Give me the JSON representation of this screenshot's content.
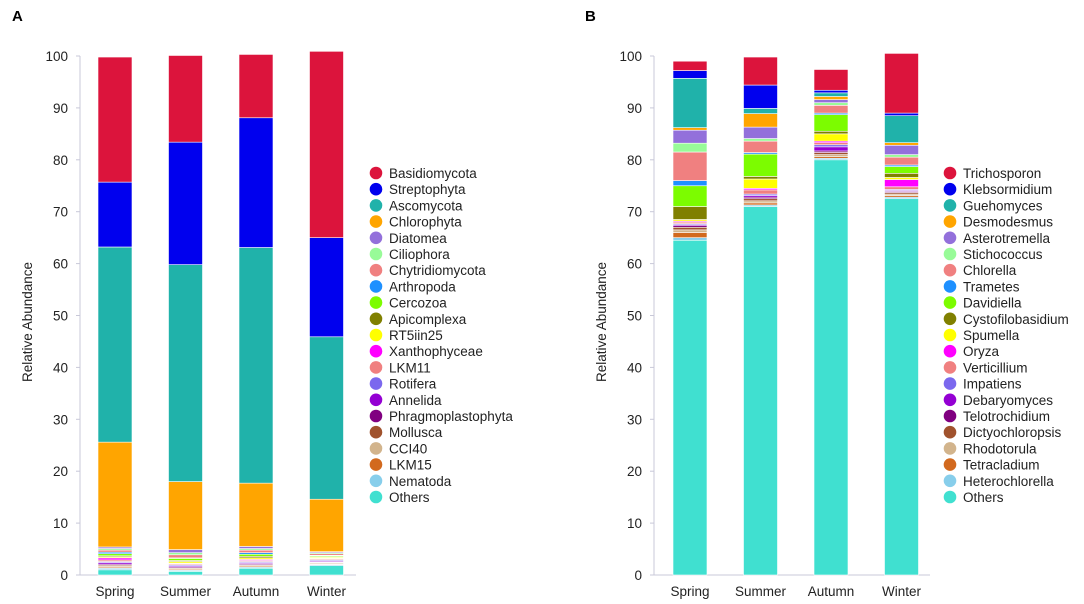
{
  "chart_data": [
    {
      "type": "bar",
      "stacked": true,
      "panel_label": "A",
      "title": "",
      "xlabel": "",
      "ylabel": "Relative Abundance",
      "ylim": [
        0,
        100
      ],
      "yticks": [
        "0",
        "10",
        "20",
        "30",
        "40",
        "50",
        "60",
        "70",
        "80",
        "90",
        "100"
      ],
      "categories": [
        "Spring",
        "Summer",
        "Autumn",
        "Winter"
      ],
      "legend_position": "right",
      "series": [
        {
          "name": "Others",
          "color": "#40e0d0",
          "values": [
            1.0,
            0.7,
            1.3,
            1.8
          ]
        },
        {
          "name": "Nematoda",
          "color": "#87ceeb",
          "values": [
            0.3,
            0.2,
            0.2,
            0.2
          ]
        },
        {
          "name": "LKM15",
          "color": "#d2691e",
          "values": [
            0.2,
            0.2,
            0.2,
            0.1
          ]
        },
        {
          "name": "CCI40",
          "color": "#d2b48c",
          "values": [
            0.2,
            0.2,
            0.2,
            0.2
          ]
        },
        {
          "name": "Mollusca",
          "color": "#a0522d",
          "values": [
            0.2,
            0.1,
            0.1,
            0.1
          ]
        },
        {
          "name": "Phragmoplastophyta",
          "color": "#800080",
          "values": [
            0.2,
            0.2,
            0.2,
            0.1
          ]
        },
        {
          "name": "Annelida",
          "color": "#9400d3",
          "values": [
            0.3,
            0.2,
            0.2,
            0.2
          ]
        },
        {
          "name": "Rotifera",
          "color": "#7b68ee",
          "values": [
            0.2,
            0.2,
            0.2,
            0.2
          ]
        },
        {
          "name": "LKM11",
          "color": "#f08080",
          "values": [
            0.3,
            0.2,
            0.2,
            0.2
          ]
        },
        {
          "name": "Xanthophyceae",
          "color": "#ff00ff",
          "values": [
            0.4,
            0.1,
            0.2,
            0.1
          ]
        },
        {
          "name": "RT5iin25",
          "color": "#ffff00",
          "values": [
            0.2,
            0.3,
            0.3,
            0.2
          ]
        },
        {
          "name": "Apicomplexa",
          "color": "#808000",
          "values": [
            0.2,
            0.2,
            0.3,
            0.1
          ]
        },
        {
          "name": "Cercozoa",
          "color": "#7cfc00",
          "values": [
            0.4,
            0.4,
            0.4,
            0.2
          ]
        },
        {
          "name": "Arthropoda",
          "color": "#1e90ff",
          "values": [
            0.3,
            0.1,
            0.3,
            0.1
          ]
        },
        {
          "name": "Chytridiomycota",
          "color": "#f08080",
          "values": [
            0.4,
            0.6,
            0.5,
            0.3
          ]
        },
        {
          "name": "Ciliophora",
          "color": "#98fb98",
          "values": [
            0.3,
            0.4,
            0.3,
            0.2
          ]
        },
        {
          "name": "Diatomea",
          "color": "#9370db",
          "values": [
            0.3,
            0.6,
            0.4,
            0.2
          ]
        },
        {
          "name": "Chlorophyta",
          "color": "#ffa500",
          "values": [
            20.2,
            13.1,
            12.2,
            10.1
          ]
        },
        {
          "name": "Ascomycota",
          "color": "#20b2aa",
          "values": [
            37.6,
            41.8,
            45.4,
            31.3
          ]
        },
        {
          "name": "Streptophyta",
          "color": "#0000ee",
          "values": [
            12.5,
            23.6,
            25.0,
            19.1
          ]
        },
        {
          "name": "Basidiomycota",
          "color": "#dc143c",
          "values": [
            24.1,
            16.7,
            12.2,
            35.9
          ]
        }
      ]
    },
    {
      "type": "bar",
      "stacked": true,
      "panel_label": "B",
      "title": "",
      "xlabel": "",
      "ylabel": "Relative Abundance",
      "ylim": [
        0,
        100
      ],
      "yticks": [
        "0",
        "10",
        "20",
        "30",
        "40",
        "50",
        "60",
        "70",
        "80",
        "90",
        "100"
      ],
      "categories": [
        "Spring",
        "Summer",
        "Autumn",
        "Winter"
      ],
      "legend_position": "right",
      "series": [
        {
          "name": "Others",
          "color": "#40e0d0",
          "values": [
            64.5,
            71.0,
            80.0,
            72.5
          ]
        },
        {
          "name": "Heterochlorella",
          "color": "#87ceeb",
          "values": [
            0.5,
            0.3,
            0.3,
            0.3
          ]
        },
        {
          "name": "Tetracladium",
          "color": "#d2691e",
          "values": [
            1.0,
            0.4,
            0.3,
            0.3
          ]
        },
        {
          "name": "Rhodotorula",
          "color": "#d2b48c",
          "values": [
            0.5,
            0.4,
            0.4,
            0.3
          ]
        },
        {
          "name": "Dictyochloropsis",
          "color": "#a0522d",
          "values": [
            0.5,
            0.4,
            0.4,
            0.3
          ]
        },
        {
          "name": "Telotrochidium",
          "color": "#800080",
          "values": [
            0.3,
            0.3,
            0.3,
            0.2
          ]
        },
        {
          "name": "Debaryomyces",
          "color": "#9400d3",
          "values": [
            0.2,
            0.3,
            0.8,
            0.2
          ]
        },
        {
          "name": "Impatiens",
          "color": "#7b68ee",
          "values": [
            0.2,
            0.3,
            0.4,
            0.2
          ]
        },
        {
          "name": "Verticillium",
          "color": "#f08080",
          "values": [
            0.3,
            0.8,
            0.4,
            0.5
          ]
        },
        {
          "name": "Oryza",
          "color": "#ff00ff",
          "values": [
            0.2,
            0.3,
            0.3,
            1.4
          ]
        },
        {
          "name": "Spumella",
          "color": "#ffff00",
          "values": [
            0.3,
            1.8,
            1.4,
            0.4
          ]
        },
        {
          "name": "Cystofilobasidium",
          "color": "#808000",
          "values": [
            2.5,
            0.5,
            0.5,
            0.8
          ]
        },
        {
          "name": "Davidiella",
          "color": "#7cfc00",
          "values": [
            4.0,
            4.3,
            3.2,
            1.3
          ]
        },
        {
          "name": "Trametes",
          "color": "#1e90ff",
          "values": [
            1.0,
            0.3,
            0.3,
            0.3
          ]
        },
        {
          "name": "Chlorella",
          "color": "#f08080",
          "values": [
            5.5,
            2.2,
            1.5,
            1.5
          ]
        },
        {
          "name": "Stichococcus",
          "color": "#98fb98",
          "values": [
            1.7,
            0.5,
            0.5,
            0.5
          ]
        },
        {
          "name": "Asterotremella",
          "color": "#9370db",
          "values": [
            2.5,
            2.2,
            0.6,
            1.8
          ]
        },
        {
          "name": "Desmodesmus",
          "color": "#ffa500",
          "values": [
            0.5,
            2.6,
            0.6,
            0.5
          ]
        },
        {
          "name": "Guehomyces",
          "color": "#20b2aa",
          "values": [
            9.5,
            1.0,
            0.7,
            5.2
          ]
        },
        {
          "name": "Klebsormidium",
          "color": "#0000ee",
          "values": [
            1.5,
            4.5,
            0.5,
            0.5
          ]
        },
        {
          "name": "Trichosporon",
          "color": "#dc143c",
          "values": [
            1.8,
            5.4,
            4.0,
            11.5
          ]
        }
      ]
    }
  ]
}
